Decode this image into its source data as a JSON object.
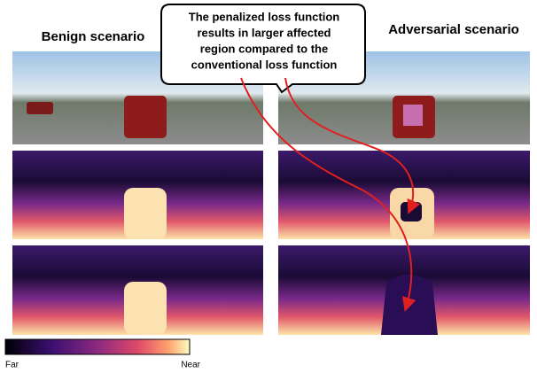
{
  "titles": {
    "benign": "Benign scenario",
    "adversarial": "Adversarial scenario"
  },
  "callout": {
    "lines": [
      "The penalized loss function",
      "results in larger affected",
      "region compared to the",
      "conventional loss function"
    ]
  },
  "colorbar": {
    "far": "Far",
    "near": "Near"
  }
}
